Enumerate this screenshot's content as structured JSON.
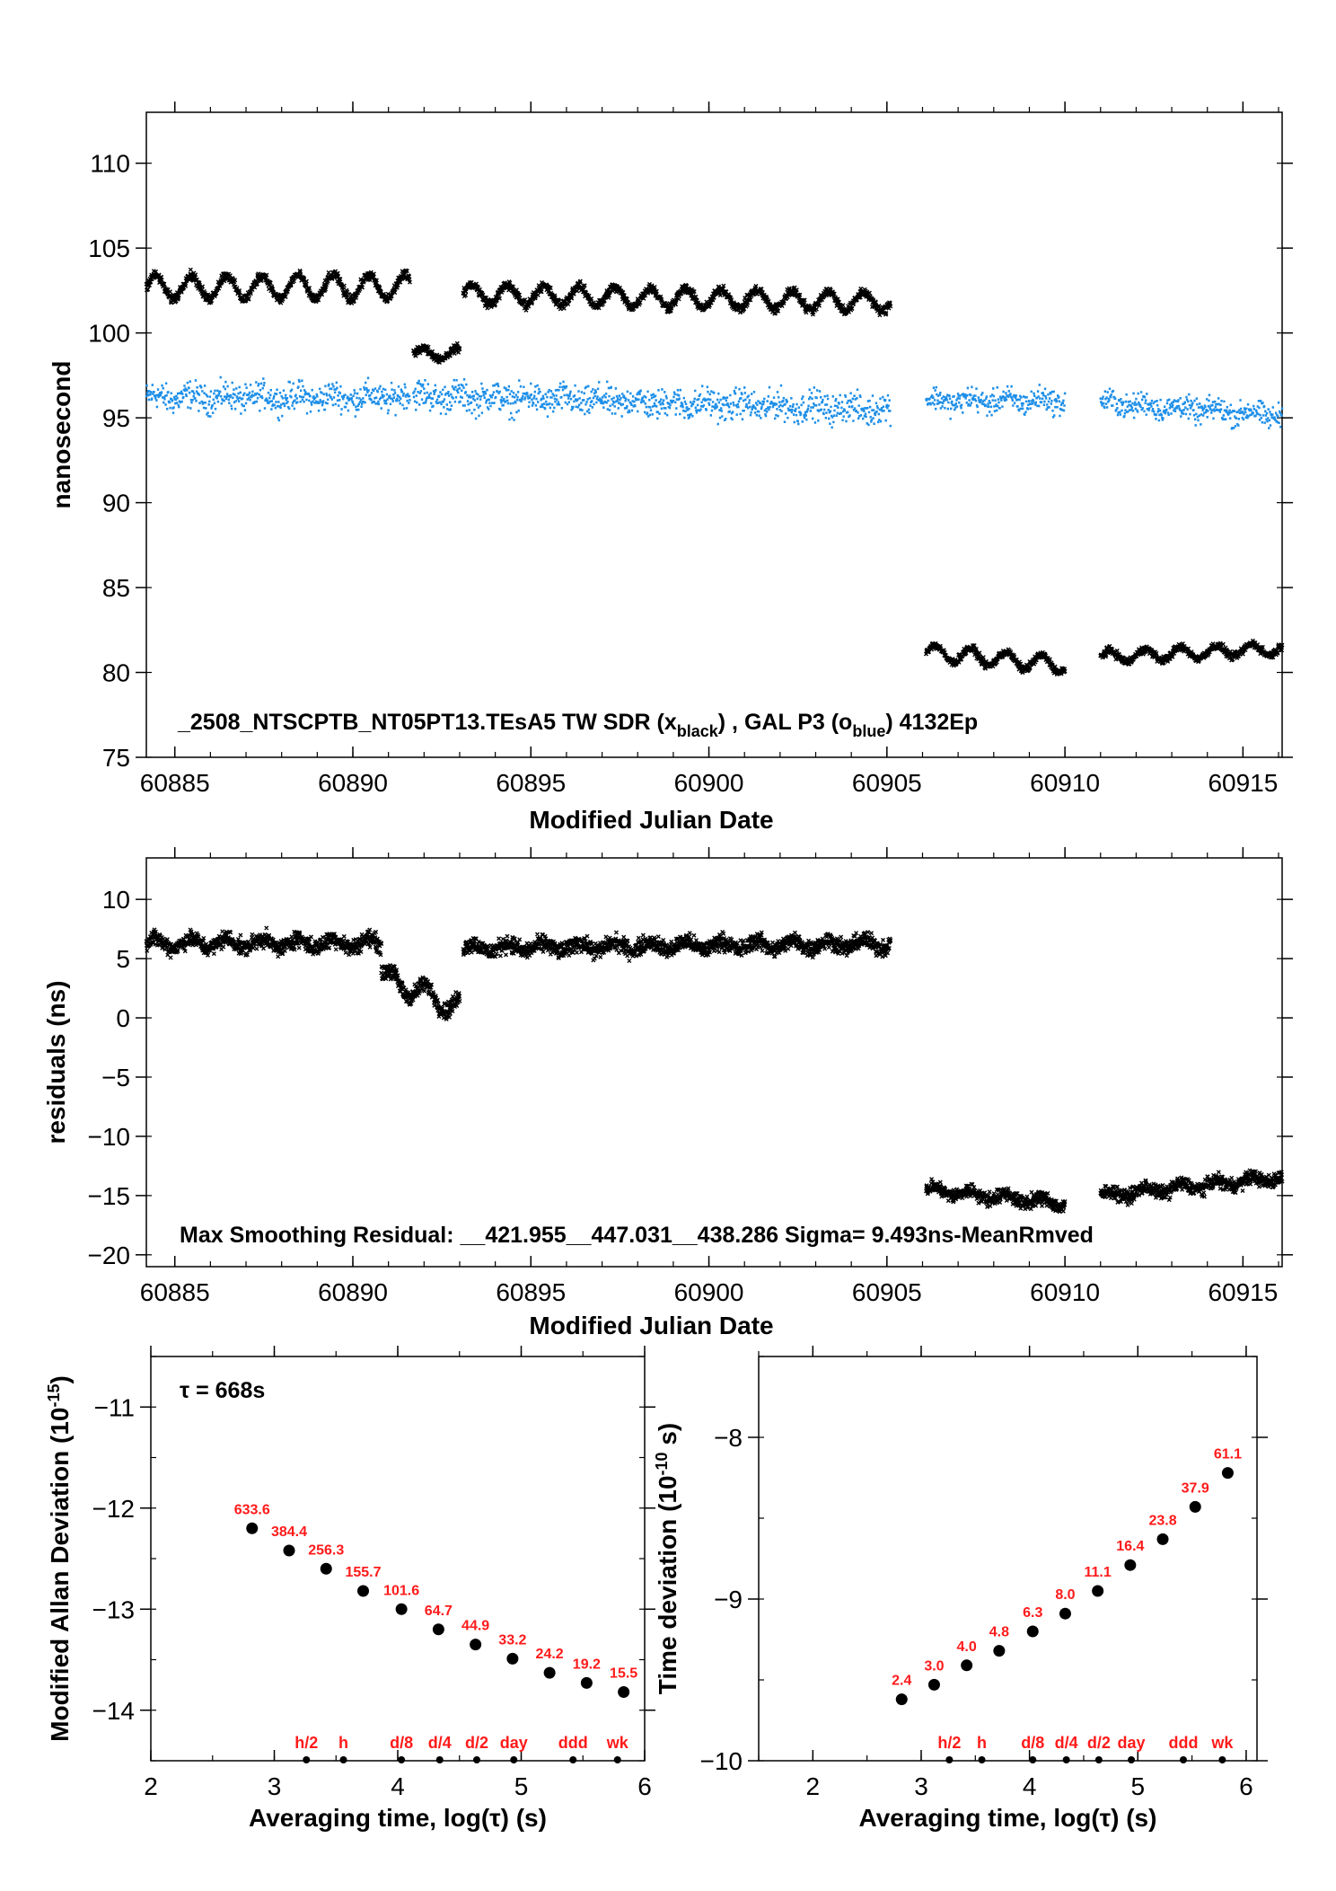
{
  "chart_data": [
    {
      "type": "scatter",
      "id": "timeseries",
      "xlabel": "Modified Julian Date",
      "ylabel": "nanosecond",
      "xlim": [
        60884.2,
        60916.1
      ],
      "ylim": [
        75,
        113
      ],
      "xticks": [
        "60885",
        "60890",
        "60895",
        "60900",
        "60905",
        "60910",
        "60915"
      ],
      "yticks": [
        "75",
        "80",
        "85",
        "90",
        "95",
        "100",
        "105",
        "110"
      ],
      "annotation": {
        "main": "_2508_NTSCPTB_NT05PT13.TEsA5     TW SDR (x",
        "sub1": "black",
        "mid": ") ,   GAL P3 (o",
        "sub2": "blue",
        "end": ")  4132Ep"
      },
      "colors": {
        "series1": "#000000",
        "series2": "#1e8fe8"
      },
      "series": [
        {
          "segments": [
            {
              "x0": 60884.2,
              "x1": 60891.6,
              "base": 102.7,
              "amp": 0.7,
              "period": 1.0,
              "noise": 0.25
            },
            {
              "x0": 60891.7,
              "x1": 60893.0,
              "base": 98.8,
              "amp": 0.3,
              "period": 1.0,
              "noise": 0.2
            },
            {
              "x0": 60893.1,
              "x1": 60905.1,
              "base": 102.3,
              "amp": 0.55,
              "period": 1.0,
              "noise": 0.25,
              "slope": -0.04
            },
            {
              "x0": 60906.1,
              "x1": 60910.0,
              "base": 81.2,
              "amp": 0.45,
              "period": 1.0,
              "noise": 0.2,
              "slope": -0.2
            },
            {
              "x0": 60911.0,
              "x1": 60916.1,
              "base": 80.9,
              "amp": 0.35,
              "period": 1.0,
              "noise": 0.2,
              "slope": 0.1
            }
          ]
        },
        {
          "segments": [
            {
              "x0": 60884.2,
              "x1": 60891.6,
              "base": 96.2,
              "amp": 0.2,
              "period": 1.0,
              "noise": 0.7
            },
            {
              "x0": 60891.7,
              "x1": 60905.1,
              "base": 96.3,
              "amp": 0.2,
              "period": 1.0,
              "noise": 0.75,
              "slope": -0.06
            },
            {
              "x0": 60906.1,
              "x1": 60910.0,
              "base": 96.0,
              "amp": 0.2,
              "period": 1.0,
              "noise": 0.6
            },
            {
              "x0": 60911.0,
              "x1": 60916.1,
              "base": 95.9,
              "amp": 0.2,
              "period": 1.0,
              "noise": 0.6,
              "slope": -0.15
            }
          ]
        }
      ]
    },
    {
      "type": "scatter",
      "id": "residuals",
      "xlabel": "Modified Julian Date",
      "ylabel": "residuals (ns)",
      "xlim": [
        60884.2,
        60916.1
      ],
      "ylim": [
        -21,
        13.5
      ],
      "xticks": [
        "60885",
        "60890",
        "60895",
        "60900",
        "60905",
        "60910",
        "60915"
      ],
      "yticks": [
        "10",
        "5",
        "0",
        "−5",
        "−10",
        "−15",
        "−20"
      ],
      "annotation": "Max Smoothing Residual: __421.955__447.031__438.286  Sigma= 9.493ns-MeanRmved",
      "series": [
        {
          "segments": [
            {
              "x0": 60884.2,
              "x1": 60890.8,
              "base": 6.3,
              "amp": 0.4,
              "period": 1.0,
              "noise": 0.6
            },
            {
              "x0": 60890.8,
              "x1": 60893.0,
              "base": 3.5,
              "amp": 0.8,
              "period": 1.0,
              "noise": 0.6,
              "slope": -1.2
            },
            {
              "x0": 60893.1,
              "x1": 60905.1,
              "base": 5.9,
              "amp": 0.35,
              "period": 1.0,
              "noise": 0.6,
              "slope": 0.03
            },
            {
              "x0": 60906.1,
              "x1": 60910.0,
              "base": -14.5,
              "amp": 0.3,
              "period": 1.0,
              "noise": 0.5,
              "slope": -0.3
            },
            {
              "x0": 60911.0,
              "x1": 60916.1,
              "base": -15.0,
              "amp": 0.3,
              "period": 1.0,
              "noise": 0.5,
              "slope": 0.3
            }
          ]
        }
      ]
    },
    {
      "type": "scatter",
      "id": "mdev",
      "xlabel": "Averaging time, log(τ) (s)",
      "ylabel_main": "Modified Allan Deviation (10",
      "ylabel_sup": "-15",
      "ylabel_end": ")",
      "xlim": [
        2,
        6
      ],
      "ylim": [
        -14.5,
        -10.5
      ],
      "xticks": [
        "2",
        "3",
        "4",
        "5",
        "6"
      ],
      "yticks": [
        "−11",
        "−12",
        "−13",
        "−14"
      ],
      "tau_note": "τ = 668s",
      "points": [
        {
          "x": 2.82,
          "y": -12.2,
          "label": "633.6"
        },
        {
          "x": 3.12,
          "y": -12.42,
          "label": "384.4"
        },
        {
          "x": 3.42,
          "y": -12.6,
          "label": "256.3"
        },
        {
          "x": 3.72,
          "y": -12.82,
          "label": "155.7"
        },
        {
          "x": 4.03,
          "y": -13.0,
          "label": "101.6"
        },
        {
          "x": 4.33,
          "y": -13.2,
          "label": "64.7"
        },
        {
          "x": 4.63,
          "y": -13.35,
          "label": "44.9"
        },
        {
          "x": 4.93,
          "y": -13.49,
          "label": "33.2"
        },
        {
          "x": 5.23,
          "y": -13.63,
          "label": "24.2"
        },
        {
          "x": 5.53,
          "y": -13.73,
          "label": "19.2"
        },
        {
          "x": 5.83,
          "y": -13.82,
          "label": "15.5"
        }
      ],
      "markers": [
        {
          "x": 3.26,
          "label": "h/2"
        },
        {
          "x": 3.56,
          "label": "h"
        },
        {
          "x": 4.03,
          "label": "d/8"
        },
        {
          "x": 4.34,
          "label": "d/4"
        },
        {
          "x": 4.64,
          "label": "d/2"
        },
        {
          "x": 4.94,
          "label": "day"
        },
        {
          "x": 5.42,
          "label": "ddd"
        },
        {
          "x": 5.78,
          "label": "wk"
        }
      ]
    },
    {
      "type": "scatter",
      "id": "tdev",
      "xlabel": "Averaging time, log(τ) (s)",
      "ylabel_main": "Time deviation (10",
      "ylabel_sup": "-10",
      "ylabel_end": " s)",
      "xlim": [
        1.5,
        6.1
      ],
      "ylim": [
        -10,
        -7.5
      ],
      "xticks": [
        "2",
        "3",
        "4",
        "5",
        "6"
      ],
      "yticks": [
        "−8",
        "−9",
        "−10"
      ],
      "points": [
        {
          "x": 2.82,
          "y": -9.62,
          "label": "2.4"
        },
        {
          "x": 3.12,
          "y": -9.53,
          "label": "3.0"
        },
        {
          "x": 3.42,
          "y": -9.41,
          "label": "4.0"
        },
        {
          "x": 3.72,
          "y": -9.32,
          "label": "4.8"
        },
        {
          "x": 4.03,
          "y": -9.2,
          "label": "6.3"
        },
        {
          "x": 4.33,
          "y": -9.09,
          "label": "8.0"
        },
        {
          "x": 4.63,
          "y": -8.95,
          "label": "11.1"
        },
        {
          "x": 4.93,
          "y": -8.79,
          "label": "16.4"
        },
        {
          "x": 5.23,
          "y": -8.63,
          "label": "23.8"
        },
        {
          "x": 5.53,
          "y": -8.43,
          "label": "37.9"
        },
        {
          "x": 5.83,
          "y": -8.22,
          "label": "61.1"
        }
      ],
      "markers": [
        {
          "x": 3.26,
          "label": "h/2"
        },
        {
          "x": 3.56,
          "label": "h"
        },
        {
          "x": 4.03,
          "label": "d/8"
        },
        {
          "x": 4.34,
          "label": "d/4"
        },
        {
          "x": 4.64,
          "label": "d/2"
        },
        {
          "x": 4.94,
          "label": "day"
        },
        {
          "x": 5.42,
          "label": "ddd"
        },
        {
          "x": 5.78,
          "label": "wk"
        }
      ]
    }
  ]
}
